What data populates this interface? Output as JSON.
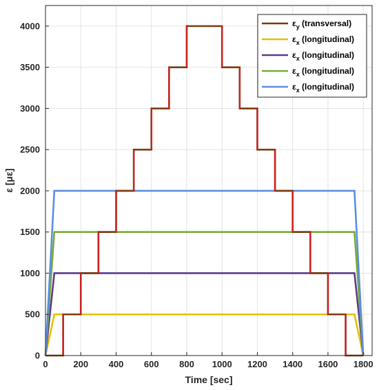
{
  "chart_data": {
    "type": "line",
    "title": "",
    "xlabel": "Time [sec]",
    "ylabel": "ε [με]",
    "xlim": [
      0,
      1850
    ],
    "ylim": [
      0,
      4250
    ],
    "xticks": [
      0,
      200,
      400,
      600,
      800,
      1000,
      1200,
      1400,
      1600,
      1800
    ],
    "yticks": [
      0,
      500,
      1000,
      1500,
      2000,
      2500,
      3000,
      3500,
      4000
    ],
    "grid": true,
    "legend_position": "top-right",
    "series": [
      {
        "legend_symbol": "ε",
        "legend_subscript": "y",
        "legend_suffix": " (transversal)",
        "color": "#7B3A10",
        "x": [
          0,
          100,
          100,
          200,
          200,
          300,
          300,
          400,
          400,
          500,
          500,
          600,
          600,
          700,
          700,
          800,
          800,
          1000,
          1000,
          1100,
          1100,
          1200,
          1200,
          1300,
          1300,
          1400,
          1400,
          1500,
          1500,
          1600,
          1600,
          1700,
          1700,
          1800
        ],
        "y": [
          0,
          0,
          500,
          500,
          1000,
          1000,
          1500,
          1500,
          2000,
          2000,
          2500,
          2500,
          3000,
          3000,
          3500,
          3500,
          4000,
          4000,
          3500,
          3500,
          3000,
          3000,
          2500,
          2500,
          2000,
          2000,
          1500,
          1500,
          1000,
          1000,
          500,
          500,
          0,
          0
        ]
      },
      {
        "legend_symbol": "ε",
        "legend_subscript": "x",
        "legend_suffix": " (longitudinal)",
        "color": "#E6C000",
        "x": [
          0,
          50,
          1750,
          1800
        ],
        "y": [
          0,
          500,
          500,
          0
        ]
      },
      {
        "legend_symbol": "ε",
        "legend_subscript": "x",
        "legend_suffix": " (longitudinal)",
        "color": "#5B3A8C",
        "x": [
          0,
          50,
          1750,
          1800
        ],
        "y": [
          0,
          1000,
          1000,
          0
        ]
      },
      {
        "legend_symbol": "ε",
        "legend_subscript": "x",
        "legend_suffix": " (longitudinal)",
        "color": "#77AC30",
        "x": [
          0,
          50,
          1750,
          1800
        ],
        "y": [
          0,
          1500,
          1500,
          0
        ]
      },
      {
        "legend_symbol": "ε",
        "legend_subscript": "x",
        "legend_suffix": " (longitudinal)",
        "color": "#5B8EE0",
        "x": [
          0,
          50,
          1750,
          1800
        ],
        "y": [
          0,
          2000,
          2000,
          0
        ]
      }
    ],
    "transition_color": "#D02020"
  }
}
